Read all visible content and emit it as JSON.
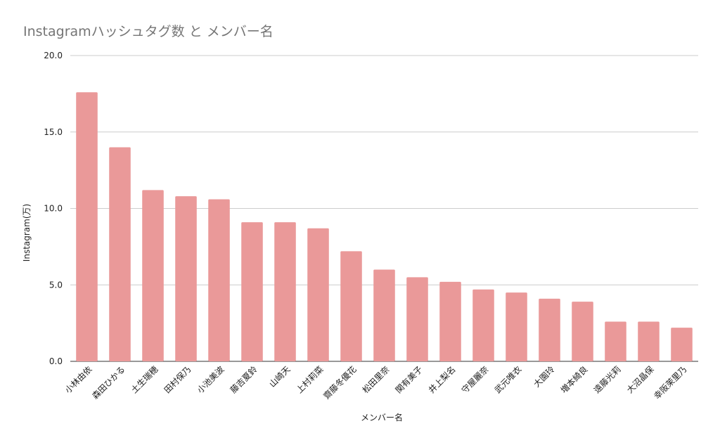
{
  "chart": {
    "title": "Instagramハッシュタグ数 と メンバー名"
  },
  "chart_data": {
    "type": "bar",
    "title": "Instagramハッシュタグ数 と メンバー名",
    "xlabel": "メンバー名",
    "ylabel": "Instagram(万)",
    "ylim": [
      0,
      20
    ],
    "yticks": [
      "0.0",
      "5.0",
      "10.0",
      "15.0",
      "20.0"
    ],
    "grid": true,
    "bar_color": "#ea9999",
    "categories": [
      "小林由依",
      "森田ひかる",
      "土生瑞穂",
      "田村保乃",
      "小池美波",
      "藤吉夏鈴",
      "山崎天",
      "上村莉菜",
      "齋藤冬優花",
      "松田里奈",
      "関有美子",
      "井上梨名",
      "守屋麗奈",
      "武元唯衣",
      "大園玲",
      "増本綺良",
      "遠藤光莉",
      "大沼晶保",
      "幸阪茉里乃"
    ],
    "values": [
      17.6,
      14.0,
      11.2,
      10.8,
      10.6,
      9.1,
      9.1,
      8.7,
      7.2,
      6.0,
      5.5,
      5.2,
      4.7,
      4.5,
      4.1,
      3.9,
      2.6,
      2.6,
      2.2
    ]
  }
}
